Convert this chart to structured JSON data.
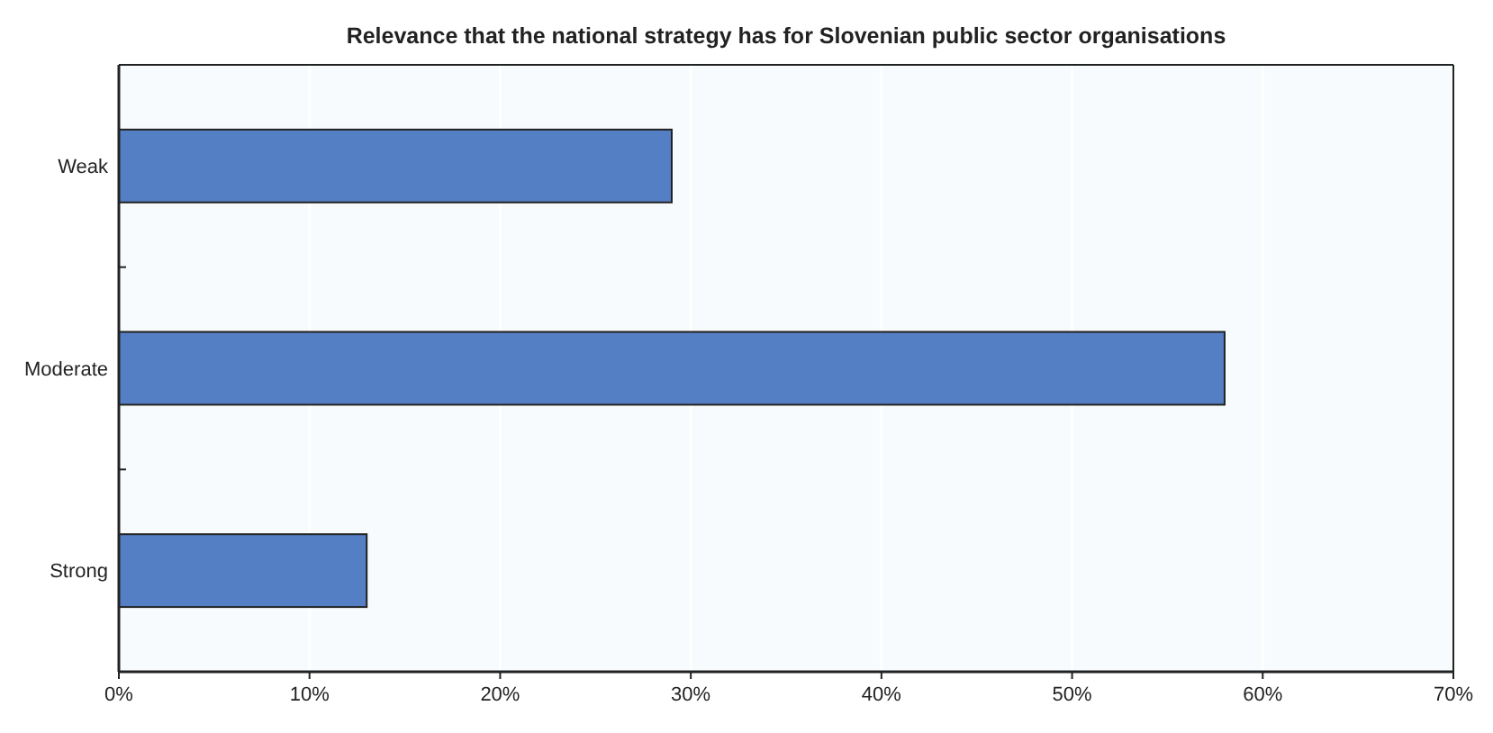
{
  "chart_data": {
    "type": "bar",
    "orientation": "horizontal",
    "title": "Relevance that the national strategy has for Slovenian public sector organisations",
    "categories": [
      "Weak",
      "Moderate",
      "Strong"
    ],
    "values": [
      29,
      58,
      13
    ],
    "color": "#557fc4",
    "xlim": [
      0,
      70
    ],
    "xticks": [
      {
        "value": 0,
        "label": "0%"
      },
      {
        "value": 10,
        "label": "10%"
      },
      {
        "value": 20,
        "label": "20%"
      },
      {
        "value": 30,
        "label": "30%"
      },
      {
        "value": 40,
        "label": "40%"
      },
      {
        "value": 50,
        "label": "50%"
      },
      {
        "value": 60,
        "label": "60%"
      },
      {
        "value": 70,
        "label": "70%"
      }
    ],
    "grid": "x"
  }
}
